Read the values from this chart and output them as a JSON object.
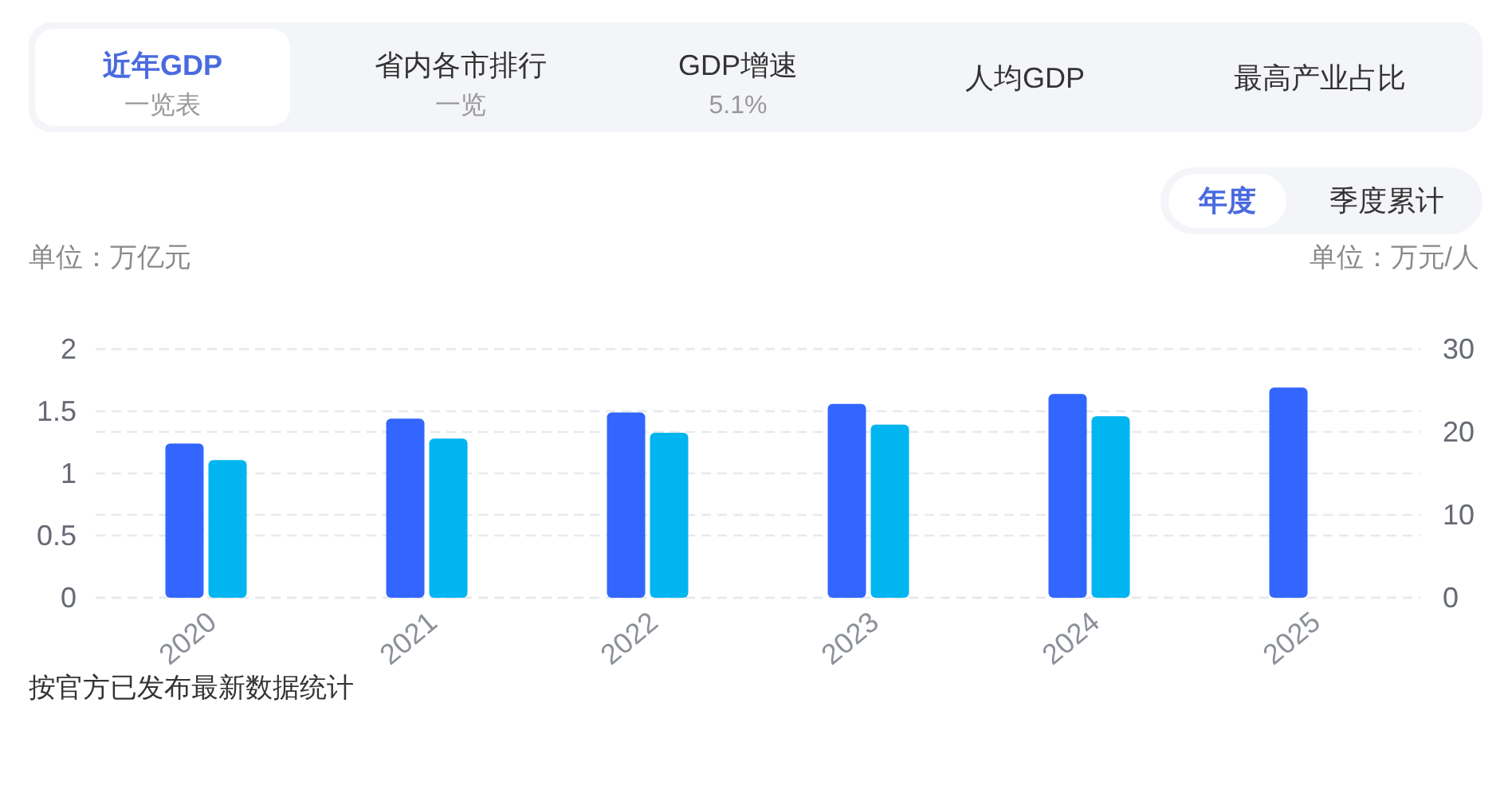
{
  "chart_data": {
    "type": "bar",
    "categories": [
      "2020",
      "2021",
      "2022",
      "2023",
      "2024",
      "2025"
    ],
    "series": [
      {
        "color": "#3366fe",
        "values": [
          1.24,
          1.44,
          1.49,
          1.56,
          1.64,
          1.69
        ]
      },
      {
        "color": "#00b5f0",
        "axis": "y2",
        "values": [
          16.6,
          19.2,
          19.9,
          20.9,
          21.9,
          null
        ]
      }
    ],
    "ylim": [
      0,
      2
    ],
    "yticks": [
      0,
      0.5,
      1,
      1.5,
      2
    ],
    "y2lim": [
      0,
      30
    ],
    "y2ticks": [
      0,
      10,
      20,
      30
    ],
    "ylabel": "单位：万亿元",
    "y2label": "单位：万元/人",
    "grid": true,
    "annotations": [
      "近年GDP",
      "一览表",
      "省内各市排行",
      "一览",
      "GDP增速",
      "5.1%",
      "人均GDP",
      "最高产业占比",
      "年度",
      "季度累计",
      "按官方已发布最新数据统计"
    ]
  }
}
